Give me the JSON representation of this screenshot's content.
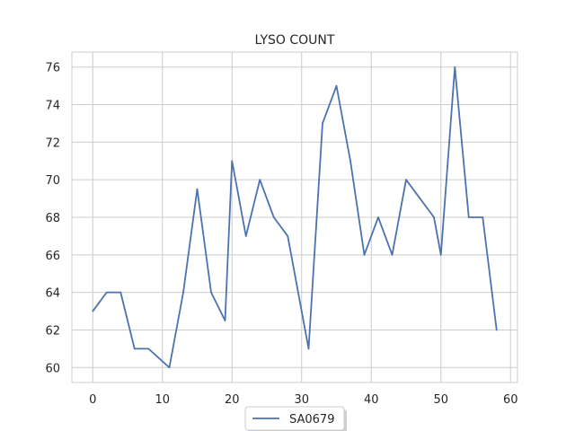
{
  "chart_data": {
    "type": "line",
    "title": "LYSO COUNT",
    "xlabel": "",
    "ylabel": "",
    "xlim": [
      -3,
      61
    ],
    "ylim": [
      59.2,
      76.8
    ],
    "xticks": [
      0,
      10,
      20,
      30,
      40,
      50,
      60
    ],
    "yticks": [
      60,
      62,
      64,
      66,
      68,
      70,
      72,
      74,
      76
    ],
    "grid": true,
    "legend_position": "bottom-center",
    "series": [
      {
        "name": "SA0679",
        "color": "#4c72b0",
        "x": [
          0,
          2,
          4,
          6,
          8,
          11,
          13,
          15,
          17,
          19,
          20,
          22,
          24,
          26,
          28,
          31,
          33,
          35,
          37,
          39,
          41,
          43,
          45,
          47,
          49,
          50,
          52,
          54,
          56,
          58
        ],
        "y": [
          63,
          64,
          64,
          61,
          61,
          60,
          64,
          69.5,
          64,
          62.5,
          71,
          67,
          70,
          68,
          67,
          61,
          73,
          75,
          71,
          66,
          68,
          66,
          70,
          69,
          68,
          66,
          76,
          68,
          68,
          62
        ]
      }
    ]
  }
}
